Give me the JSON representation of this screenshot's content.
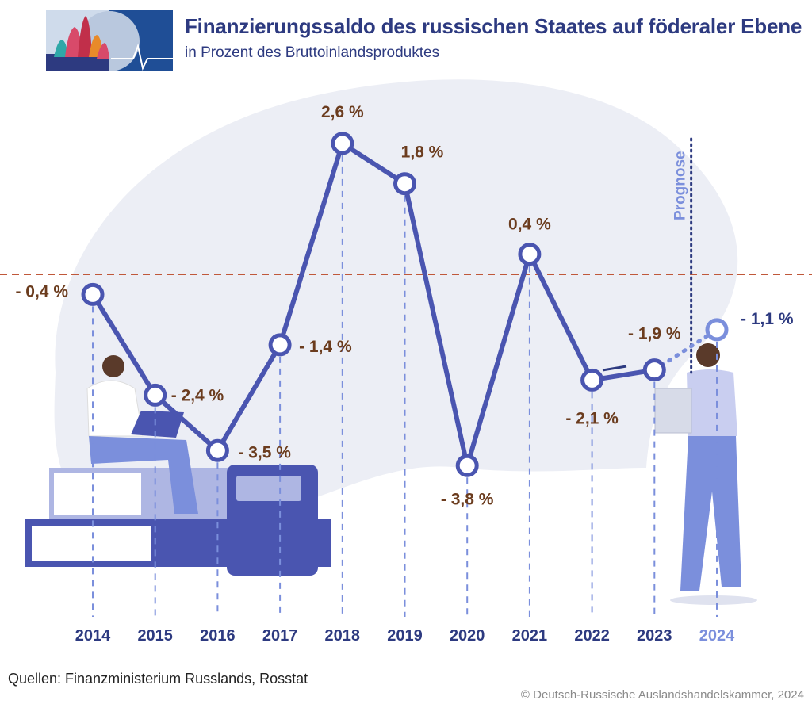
{
  "header": {
    "title": "Finanzierungssaldo des russischen Staates auf föderaler Ebene",
    "subtitle": "in Prozent des Bruttoinlandsproduktes"
  },
  "footer": {
    "sources": "Quellen: Finanzministerium Russlands, Rosstat",
    "copyright": "© Deutsch-Russische Auslandshandelskammer, 2024"
  },
  "colors": {
    "line": "#4a55b0",
    "forecast": "#7b8fdc",
    "labels": "#6b3c1e",
    "reference_line": "#c0583a",
    "axis_text": "#2d3a80",
    "background_blob": "#eceef5"
  },
  "chart_data": {
    "type": "line",
    "title": "Finanzierungssaldo des russischen Staates auf föderaler Ebene",
    "subtitle": "in Prozent des Bruttoinlandsproduktes",
    "x": [
      "2014",
      "2015",
      "2016",
      "2017",
      "2018",
      "2019",
      "2020",
      "2021",
      "2022",
      "2023",
      "2024"
    ],
    "series": [
      {
        "values": [
          -0.4,
          -2.4,
          -3.5,
          -1.4,
          2.6,
          1.8,
          -3.8,
          0.4,
          -2.1,
          -1.9,
          -1.1
        ],
        "labels": [
          "- 0,4 %",
          "- 2,4 %",
          "- 3,5 %",
          "- 1,4 %",
          "2,6 %",
          "1,8 %",
          "- 3,8 %",
          "0,4 %",
          "- 2,1 %",
          "- 1,9 %",
          "- 1,1 %"
        ]
      }
    ],
    "forecast_from": "2024",
    "forecast_label": "Prognose",
    "reference_line": 0,
    "grid": false,
    "ylim": [
      -4.8,
      3.5
    ]
  }
}
